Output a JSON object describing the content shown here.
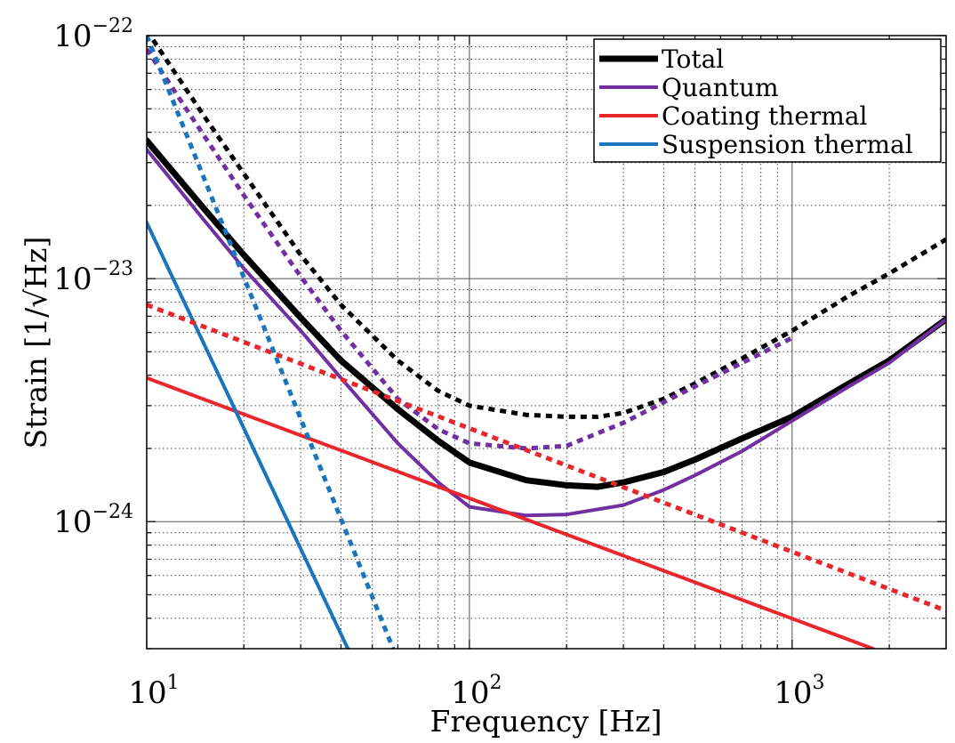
{
  "chart_data": {
    "type": "line",
    "xlabel": "Frequency [Hz]",
    "ylabel": "Strain [1/√Hz]",
    "xscale": "log",
    "yscale": "log",
    "xlim": [
      10,
      3000
    ],
    "ylim": [
      3e-25,
      1e-22
    ],
    "grid": true,
    "legend_position": "top-right",
    "x_ticks": [
      {
        "value": 10,
        "base": "10",
        "exp": "1"
      },
      {
        "value": 100,
        "base": "10",
        "exp": "2"
      },
      {
        "value": 1000,
        "base": "10",
        "exp": "3"
      }
    ],
    "y_ticks": [
      {
        "value": 1e-22,
        "base": "10",
        "exp": "−22"
      },
      {
        "value": 1e-23,
        "base": "10",
        "exp": "−23"
      },
      {
        "value": 1e-24,
        "base": "10",
        "exp": "−24"
      }
    ],
    "legend": [
      {
        "label": "Total",
        "color": "#000000",
        "width": 7
      },
      {
        "label": "Quantum",
        "color": "#7030a0",
        "width": 4
      },
      {
        "label": "Coating thermal",
        "color": "#e8262b",
        "width": 4
      },
      {
        "label": "Suspension thermal",
        "color": "#1a75bc",
        "width": 4
      }
    ],
    "series": [
      {
        "name": "Total",
        "color": "#000000",
        "width": 7,
        "dashed": false,
        "x": [
          10,
          15,
          20,
          30,
          40,
          60,
          80,
          100,
          150,
          200,
          250,
          300,
          400,
          500,
          700,
          1000,
          1500,
          2000,
          3000
        ],
        "y": [
          3.7e-23,
          1.95e-23,
          1.25e-23,
          6.9e-24,
          4.6e-24,
          2.9e-24,
          2.15e-24,
          1.75e-24,
          1.48e-24,
          1.41e-24,
          1.39e-24,
          1.45e-24,
          1.6e-24,
          1.8e-24,
          2.2e-24,
          2.7e-24,
          3.7e-24,
          4.6e-24,
          6.8e-24
        ]
      },
      {
        "name": "Quantum",
        "color": "#7030a0",
        "width": 4,
        "dashed": false,
        "x": [
          10,
          15,
          20,
          30,
          40,
          60,
          80,
          100,
          150,
          200,
          300,
          400,
          500,
          700,
          1000,
          1500,
          2000,
          3000
        ],
        "y": [
          3.4e-23,
          1.75e-23,
          1.1e-23,
          6.1e-24,
          3.9e-24,
          2.1e-24,
          1.45e-24,
          1.15e-24,
          1.06e-24,
          1.07e-24,
          1.17e-24,
          1.35e-24,
          1.55e-24,
          1.95e-24,
          2.6e-24,
          3.6e-24,
          4.5e-24,
          6.8e-24
        ]
      },
      {
        "name": "Coating thermal",
        "color": "#e8262b",
        "width": 4,
        "dashed": false,
        "x": [
          10,
          1780
        ],
        "y": [
          3.9e-24,
          3e-25
        ]
      },
      {
        "name": "Suspension thermal",
        "color": "#1a75bc",
        "width": 4,
        "dashed": false,
        "x": [
          10,
          42
        ],
        "y": [
          1.7e-23,
          3e-25
        ]
      },
      {
        "name": "Total (dashed)",
        "color": "#000000",
        "width": 5,
        "dashed": true,
        "x": [
          10,
          15,
          20,
          30,
          40,
          60,
          80,
          100,
          150,
          200,
          250,
          300,
          400,
          500,
          700,
          1000,
          1500,
          2000,
          3000
        ],
        "y": [
          1.05e-22,
          4.7e-23,
          2.7e-23,
          1.25e-23,
          7.8e-24,
          4.6e-24,
          3.45e-24,
          3e-24,
          2.75e-24,
          2.7e-24,
          2.7e-24,
          2.8e-24,
          3.2e-24,
          3.7e-24,
          4.7e-24,
          6.1e-24,
          8.5e-24,
          1.05e-23,
          1.45e-23
        ]
      },
      {
        "name": "Quantum (dashed)",
        "color": "#7030a0",
        "width": 5,
        "dashed": true,
        "x": [
          10,
          15,
          20,
          30,
          40,
          60,
          80,
          100,
          150,
          200,
          300,
          400,
          500,
          700,
          1000
        ],
        "y": [
          8.8e-23,
          3.9e-23,
          2.2e-23,
          1.02e-23,
          6.1e-24,
          3.2e-24,
          2.4e-24,
          2.1e-24,
          2e-24,
          2.05e-24,
          2.55e-24,
          3.1e-24,
          3.6e-24,
          4.5e-24,
          5.7e-24
        ]
      },
      {
        "name": "Coating thermal (dashed)",
        "color": "#e8262b",
        "width": 5,
        "dashed": true,
        "x": [
          10,
          3000
        ],
        "y": [
          7.8e-24,
          4.3e-25
        ]
      },
      {
        "name": "Suspension thermal (dashed)",
        "color": "#1a75bc",
        "width": 5,
        "dashed": true,
        "x": [
          10,
          58
        ],
        "y": [
          1e-22,
          3e-25
        ]
      }
    ]
  }
}
